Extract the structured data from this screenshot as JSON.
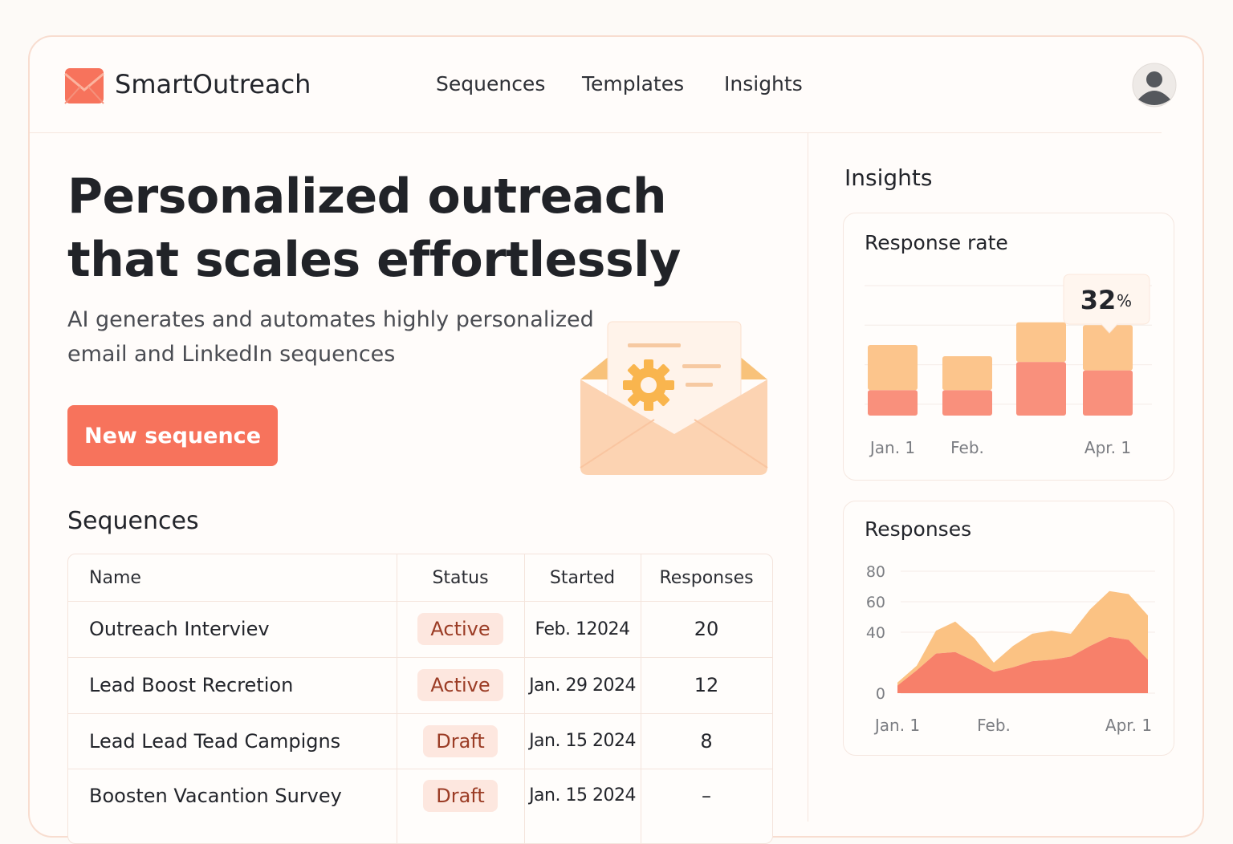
{
  "header": {
    "brand": "SmartOutreach",
    "nav": [
      "Sequences",
      "Templates",
      "Insights"
    ]
  },
  "hero": {
    "title_lines": [
      "Personalized outreach",
      "that scales effortlessly"
    ],
    "subtitle_lines": [
      "AI generates and automates highly personalized",
      "email and LinkedIn sequences"
    ],
    "button": "New sequence"
  },
  "sequences": {
    "title": "Sequences",
    "columns": [
      "Name",
      "Status",
      "Started",
      "Responses"
    ],
    "rows": [
      [
        "Outreach Interviev",
        "Active",
        "Feb. 12024",
        20
      ],
      [
        "Lead Boost Recretion",
        "Active",
        "Jan. 29 2024",
        12
      ],
      [
        "Lead Lead Tead Campigns",
        "Draft",
        "Jan. 15 2024",
        8
      ],
      [
        "Boosten Vacantion Survey",
        "Draft",
        "Jan. 15 2024",
        "–"
      ]
    ]
  },
  "insights": {
    "title": "Insights",
    "response_rate": {
      "type": "bar",
      "title": "Response rate",
      "stacked": true,
      "categories": [
        "Jan. 1",
        "Feb.",
        null,
        "Apr. 1"
      ],
      "series": [
        {
          "color": "#f9907c",
          "values": [
            9,
            9,
            19,
            16
          ]
        },
        {
          "color": "#fcc58c",
          "values": [
            16,
            12,
            14,
            16
          ]
        }
      ],
      "ylim": [
        0,
        46
      ],
      "grid_lines": [
        4,
        18,
        32,
        46
      ],
      "callout": "32",
      "callout_unit": "%"
    },
    "responses": {
      "type": "area",
      "title": "Responses",
      "stacked": true,
      "categories": [
        "Jan. 1",
        null,
        null,
        null,
        null,
        "Feb.",
        null,
        null,
        null,
        null,
        null,
        null,
        "Apr. 1",
        null
      ],
      "series": [
        {
          "color": "#f7806a",
          "values": [
            5,
            15,
            26,
            27,
            21,
            14,
            17,
            21,
            22,
            24,
            31,
            37,
            35,
            22
          ]
        },
        {
          "color": "#fbc283",
          "values": [
            2,
            3,
            15,
            20,
            15,
            6,
            14,
            18,
            19,
            15,
            24,
            30,
            30,
            29
          ]
        }
      ],
      "ylim": [
        0,
        80
      ],
      "yticks": [
        80,
        60,
        40,
        0
      ],
      "grid": true
    }
  }
}
